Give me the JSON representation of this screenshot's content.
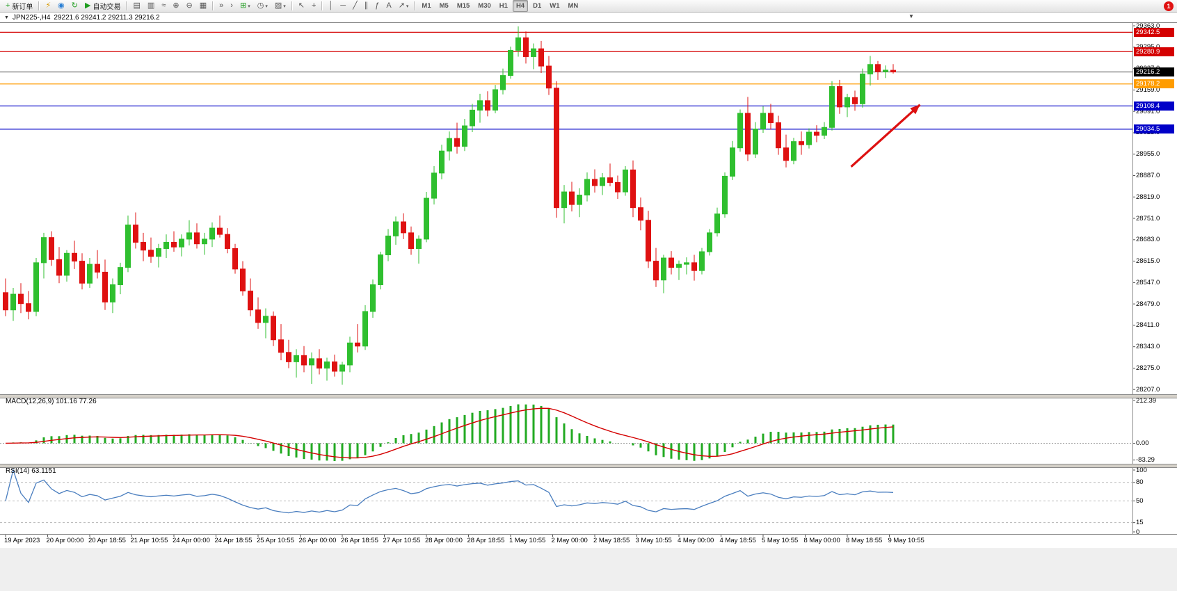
{
  "window": {
    "bg": "#f0f0f0",
    "notification_count": "1"
  },
  "toolbar": {
    "groups": [
      {
        "items": [
          {
            "name": "new-order-button",
            "icon": "+",
            "icon_color": "#1f9d1f",
            "label": "新订单"
          }
        ]
      },
      {
        "items": [
          {
            "name": "metaeditor-button",
            "icon": "⚡",
            "icon_color": "#d99a00"
          },
          {
            "name": "market-watch-button",
            "icon": "◉",
            "icon_color": "#2a7fd4"
          },
          {
            "name": "refresh-button",
            "icon": "↻",
            "icon_color": "#1f9d1f"
          },
          {
            "name": "autotrading-button",
            "icon": "▶",
            "icon_color": "#1f9d1f",
            "label": "自动交易"
          }
        ]
      },
      {
        "items": [
          {
            "name": "bar-chart-button",
            "icon": "▤"
          },
          {
            "name": "candlestick-chart-button",
            "icon": "▥"
          },
          {
            "name": "line-chart-button",
            "icon": "≈"
          },
          {
            "name": "zoom-in-button",
            "icon": "⊕"
          },
          {
            "name": "zoom-out-button",
            "icon": "⊖"
          },
          {
            "name": "tile-windows-button",
            "icon": "▦"
          }
        ]
      },
      {
        "items": [
          {
            "name": "auto-scroll-button",
            "icon": "»"
          },
          {
            "name": "chart-shift-button",
            "icon": "›"
          },
          {
            "name": "indicators-button",
            "icon": "⊞",
            "icon_color": "#1f9d1f",
            "caret": true
          },
          {
            "name": "periods-button",
            "icon": "◷",
            "caret": true
          },
          {
            "name": "templates-button",
            "icon": "▨",
            "caret": true
          }
        ]
      },
      {
        "items": [
          {
            "name": "cursor-button",
            "icon": "↖"
          },
          {
            "name": "crosshair-button",
            "icon": "+"
          }
        ]
      },
      {
        "items": [
          {
            "name": "vertical-line-button",
            "icon": "│"
          },
          {
            "name": "horizontal-line-button",
            "icon": "─"
          },
          {
            "name": "trendline-button",
            "icon": "╱"
          },
          {
            "name": "channel-button",
            "icon": "∥"
          },
          {
            "name": "fibonacci-button",
            "icon": "ƒ"
          },
          {
            "name": "text-button",
            "icon": "A"
          },
          {
            "name": "arrows-button",
            "icon": "↗",
            "caret": true
          }
        ]
      },
      {
        "items": [
          {
            "name": "timeframe-m1-button",
            "label": "M1",
            "tf": true
          },
          {
            "name": "timeframe-m5-button",
            "label": "M5",
            "tf": true
          },
          {
            "name": "timeframe-m15-button",
            "label": "M15",
            "tf": true
          },
          {
            "name": "timeframe-m30-button",
            "label": "M30",
            "tf": true
          },
          {
            "name": "timeframe-h1-button",
            "label": "H1",
            "tf": true
          },
          {
            "name": "timeframe-h4-button",
            "label": "H4",
            "tf": true,
            "active": true
          },
          {
            "name": "timeframe-d1-button",
            "label": "D1",
            "tf": true
          },
          {
            "name": "timeframe-w1-button",
            "label": "W1",
            "tf": true
          },
          {
            "name": "timeframe-mn-button",
            "label": "MN",
            "tf": true
          }
        ]
      }
    ]
  },
  "chart": {
    "title": {
      "collapse_icon": "▼",
      "symbol_period": "JPN225-,H4",
      "ohlc": "29221.6 29241.2 29211.3 29216.2"
    },
    "shift_marker": "▼"
  },
  "chart_data": {
    "type": "candlestick",
    "symbol": "JPN225-",
    "timeframe": "H4",
    "current_bar": {
      "open": 29221.6,
      "high": 29241.2,
      "low": 29211.3,
      "close": 29216.2
    },
    "up_color": "#2fbf2f",
    "down_color": "#df1111",
    "y_ticks": [
      "29363.0",
      "29295.0",
      "29227.0",
      "29159.0",
      "29091.0",
      "29023.0",
      "28955.0",
      "28887.0",
      "28819.0",
      "28751.0",
      "28683.0",
      "28615.0",
      "28547.0",
      "28479.0",
      "28411.0",
      "28343.0",
      "28275.0",
      "28207.0"
    ],
    "time_labels": [
      "19 Apr 2023",
      "20 Apr 00:00",
      "20 Apr 18:55",
      "21 Apr 10:55",
      "24 Apr 00:00",
      "24 Apr 18:55",
      "25 Apr 10:55",
      "26 Apr 00:00",
      "26 Apr 18:55",
      "27 Apr 10:55",
      "28 Apr 00:00",
      "28 Apr 18:55",
      "1 May 10:55",
      "2 May 00:00",
      "2 May 18:55",
      "3 May 10:55",
      "4 May 00:00",
      "4 May 18:55",
      "5 May 10:55",
      "8 May 00:00",
      "8 May 18:55",
      "9 May 10:55"
    ],
    "levels": [
      {
        "price": 29342.5,
        "label": "29342.5",
        "color": "#d40000",
        "kind": "resistance"
      },
      {
        "price": 29280.9,
        "label": "29280.9",
        "color": "#d40000",
        "kind": "resistance"
      },
      {
        "price": 29178.2,
        "label": "29178.2",
        "color": "#ff9c00",
        "kind": "pivot"
      },
      {
        "price": 29108.4,
        "label": "29108.4",
        "color": "#0000c8",
        "kind": "support"
      },
      {
        "price": 29034.5,
        "label": "29034.5",
        "color": "#0000c8",
        "kind": "support"
      }
    ],
    "current_price": {
      "price": 29216.2,
      "label": "29216.2",
      "line_color": "#3c3c3c",
      "badge_color": "#000000"
    },
    "trend_arrow": {
      "from_bar": 110.5,
      "from_price": 28915,
      "to_bar": 119.5,
      "to_price": 29112,
      "color": "#dd1111"
    },
    "candles": [
      [
        28515,
        28560,
        28440,
        28460
      ],
      [
        28460,
        28530,
        28425,
        28510
      ],
      [
        28510,
        28545,
        28450,
        28480
      ],
      [
        28480,
        28520,
        28430,
        28455
      ],
      [
        28455,
        28625,
        28440,
        28610
      ],
      [
        28610,
        28705,
        28560,
        28690
      ],
      [
        28690,
        28710,
        28600,
        28620
      ],
      [
        28620,
        28660,
        28545,
        28570
      ],
      [
        28570,
        28650,
        28550,
        28640
      ],
      [
        28640,
        28680,
        28590,
        28615
      ],
      [
        28615,
        28640,
        28525,
        28545
      ],
      [
        28545,
        28625,
        28530,
        28605
      ],
      [
        28605,
        28650,
        28560,
        28580
      ],
      [
        28580,
        28620,
        28460,
        28485
      ],
      [
        28485,
        28560,
        28450,
        28540
      ],
      [
        28540,
        28610,
        28510,
        28595
      ],
      [
        28595,
        28760,
        28580,
        28730
      ],
      [
        28730,
        28770,
        28655,
        28675
      ],
      [
        28675,
        28705,
        28615,
        28650
      ],
      [
        28650,
        28690,
        28610,
        28630
      ],
      [
        28630,
        28670,
        28595,
        28655
      ],
      [
        28655,
        28700,
        28625,
        28675
      ],
      [
        28675,
        28710,
        28645,
        28660
      ],
      [
        28660,
        28700,
        28630,
        28685
      ],
      [
        28685,
        28745,
        28665,
        28705
      ],
      [
        28705,
        28735,
        28655,
        28670
      ],
      [
        28670,
        28705,
        28635,
        28685
      ],
      [
        28685,
        28738,
        28660,
        28720
      ],
      [
        28720,
        28760,
        28690,
        28700
      ],
      [
        28700,
        28720,
        28640,
        28655
      ],
      [
        28655,
        28670,
        28575,
        28590
      ],
      [
        28590,
        28615,
        28505,
        28520
      ],
      [
        28520,
        28560,
        28440,
        28460
      ],
      [
        28460,
        28500,
        28400,
        28420
      ],
      [
        28420,
        28465,
        28370,
        28440
      ],
      [
        28440,
        28455,
        28345,
        28365
      ],
      [
        28365,
        28415,
        28300,
        28325
      ],
      [
        28325,
        28365,
        28275,
        28295
      ],
      [
        28295,
        28335,
        28245,
        28315
      ],
      [
        28315,
        28345,
        28262,
        28285
      ],
      [
        28285,
        28325,
        28225,
        28305
      ],
      [
        28305,
        28335,
        28255,
        28275
      ],
      [
        28275,
        28308,
        28235,
        28295
      ],
      [
        28295,
        28318,
        28248,
        28265
      ],
      [
        28265,
        28295,
        28222,
        28285
      ],
      [
        28285,
        28375,
        28262,
        28355
      ],
      [
        28355,
        28415,
        28325,
        28345
      ],
      [
        28345,
        28475,
        28333,
        28455
      ],
      [
        28455,
        28557,
        28435,
        28540
      ],
      [
        28540,
        28645,
        28525,
        28635
      ],
      [
        28635,
        28717,
        28615,
        28695
      ],
      [
        28695,
        28757,
        28667,
        28740
      ],
      [
        28740,
        28767,
        28685,
        28705
      ],
      [
        28705,
        28725,
        28635,
        28655
      ],
      [
        28655,
        28697,
        28607,
        28685
      ],
      [
        28685,
        28835,
        28675,
        28815
      ],
      [
        28815,
        28917,
        28795,
        28895
      ],
      [
        28895,
        28985,
        28875,
        28965
      ],
      [
        28965,
        29027,
        28935,
        29005
      ],
      [
        29005,
        29055,
        28957,
        28980
      ],
      [
        28980,
        29067,
        28965,
        29045
      ],
      [
        29045,
        29115,
        29025,
        29095
      ],
      [
        29095,
        29147,
        29055,
        29125
      ],
      [
        29125,
        29155,
        29075,
        29095
      ],
      [
        29095,
        29175,
        29085,
        29160
      ],
      [
        29160,
        29227,
        29145,
        29205
      ],
      [
        29205,
        29297,
        29195,
        29285
      ],
      [
        29285,
        29361,
        29265,
        29325
      ],
      [
        29325,
        29345,
        29243,
        29265
      ],
      [
        29265,
        29307,
        29225,
        29290
      ],
      [
        29290,
        29315,
        29213,
        29235
      ],
      [
        29235,
        29267,
        29143,
        29165
      ],
      [
        29165,
        29187,
        28753,
        28785
      ],
      [
        28785,
        28857,
        28735,
        28835
      ],
      [
        28835,
        28867,
        28773,
        28795
      ],
      [
        28795,
        28847,
        28755,
        28825
      ],
      [
        28825,
        28897,
        28805,
        28875
      ],
      [
        28875,
        28907,
        28833,
        28855
      ],
      [
        28855,
        28895,
        28825,
        28880
      ],
      [
        28880,
        28925,
        28853,
        28865
      ],
      [
        28865,
        28887,
        28813,
        28835
      ],
      [
        28835,
        28917,
        28823,
        28905
      ],
      [
        28905,
        28935,
        28755,
        28785
      ],
      [
        28785,
        28817,
        28713,
        28745
      ],
      [
        28745,
        28775,
        28593,
        28615
      ],
      [
        28615,
        28657,
        28533,
        28555
      ],
      [
        28555,
        28635,
        28513,
        28625
      ],
      [
        28625,
        28647,
        28573,
        28595
      ],
      [
        28595,
        28617,
        28555,
        28605
      ],
      [
        28605,
        28627,
        28573,
        28610
      ],
      [
        28610,
        28635,
        28553,
        28585
      ],
      [
        28585,
        28657,
        28573,
        28645
      ],
      [
        28645,
        28717,
        28633,
        28705
      ],
      [
        28705,
        28785,
        28693,
        28765
      ],
      [
        28765,
        28897,
        28753,
        28885
      ],
      [
        28885,
        28997,
        28873,
        28975
      ],
      [
        28975,
        29097,
        28963,
        29085
      ],
      [
        29085,
        29137,
        28933,
        28955
      ],
      [
        28955,
        29057,
        28943,
        29035
      ],
      [
        29035,
        29107,
        29023,
        29085
      ],
      [
        29085,
        29115,
        29033,
        29055
      ],
      [
        29055,
        29077,
        28953,
        28975
      ],
      [
        28975,
        29017,
        28913,
        28935
      ],
      [
        28935,
        29007,
        28923,
        28995
      ],
      [
        28995,
        29027,
        28953,
        28985
      ],
      [
        28985,
        29037,
        28973,
        29025
      ],
      [
        29025,
        29047,
        28993,
        29015
      ],
      [
        29015,
        29057,
        29003,
        29040
      ],
      [
        29040,
        29187,
        29030,
        29170
      ],
      [
        29170,
        29191,
        29083,
        29105
      ],
      [
        29105,
        29147,
        29073,
        29135
      ],
      [
        29135,
        29157,
        29093,
        29115
      ],
      [
        29115,
        29227,
        29103,
        29210
      ],
      [
        29210,
        29267,
        29173,
        29240
      ],
      [
        29240,
        29251,
        29191,
        29217
      ],
      [
        29217,
        29237,
        29197,
        29222
      ],
      [
        29221.6,
        29241.2,
        29211.3,
        29216.2
      ]
    ]
  },
  "panels": {
    "macd": {
      "label": "MACD(12,26,9) 101.16 77.26",
      "settings": "12,26,9",
      "values": {
        "macd": 101.16,
        "signal": 77.26
      },
      "histogram_color": "#22aa22",
      "signal_color": "#d40000",
      "ticks": [
        {
          "label": "212.39",
          "value": 212.39
        },
        {
          "label": "0.00",
          "value": 0
        },
        {
          "label": "-83.29",
          "value": -83.29
        }
      ]
    },
    "rsi": {
      "label": "RSI(14) 63.1151",
      "period": 14,
      "value": 63.1151,
      "line_color": "#4a7ebf",
      "levels": [
        80,
        50,
        15
      ],
      "ticks": [
        {
          "label": "100",
          "value": 100
        },
        {
          "label": "80",
          "value": 80
        },
        {
          "label": "50",
          "value": 50
        },
        {
          "label": "15",
          "value": 15
        },
        {
          "label": "0",
          "value": 0
        }
      ]
    }
  }
}
